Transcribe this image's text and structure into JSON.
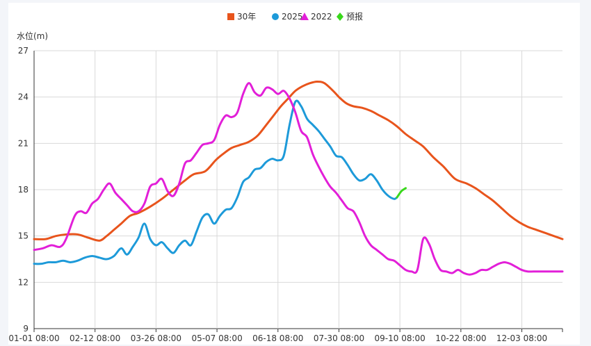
{
  "chart_data": {
    "type": "line",
    "title": "",
    "ylabel": "水位(m)",
    "xlabel": "",
    "ylim": [
      9,
      27
    ],
    "yticks": [
      9,
      12,
      15,
      18,
      21,
      24,
      27
    ],
    "xlim": [
      0,
      364
    ],
    "xticks": [
      {
        "day": 0,
        "label": "01-01 08:00"
      },
      {
        "day": 42,
        "label": "02-12 08:00"
      },
      {
        "day": 84,
        "label": "03-26 08:00"
      },
      {
        "day": 126,
        "label": "05-07 08:00"
      },
      {
        "day": 168,
        "label": "06-18 08:00"
      },
      {
        "day": 210,
        "label": "07-30 08:00"
      },
      {
        "day": 252,
        "label": "09-10 08:00"
      },
      {
        "day": 294,
        "label": "10-22 08:00"
      },
      {
        "day": 336,
        "label": "12-03 08:00"
      }
    ],
    "grid": true,
    "legend_position": "top-center",
    "series": [
      {
        "name": "30年",
        "color": "#e8541c",
        "marker": "square",
        "x": [
          0,
          8,
          15,
          22,
          30,
          37,
          45,
          50,
          55,
          60,
          66,
          72,
          80,
          88,
          96,
          104,
          110,
          118,
          125,
          130,
          136,
          142,
          148,
          154,
          160,
          165,
          170,
          175,
          180,
          185,
          190,
          195,
          200,
          206,
          210,
          215,
          220,
          226,
          232,
          238,
          244,
          250,
          256,
          262,
          268,
          275,
          282,
          290,
          298,
          304,
          310,
          316,
          322,
          328,
          334,
          340,
          346,
          352,
          358,
          364
        ],
        "values": [
          14.8,
          14.8,
          15.0,
          15.1,
          15.1,
          14.9,
          14.7,
          15.0,
          15.4,
          15.8,
          16.3,
          16.5,
          16.9,
          17.4,
          18.0,
          18.6,
          19.0,
          19.2,
          19.9,
          20.3,
          20.7,
          20.9,
          21.1,
          21.5,
          22.2,
          22.8,
          23.4,
          23.9,
          24.4,
          24.7,
          24.9,
          25.0,
          24.9,
          24.4,
          24.0,
          23.6,
          23.4,
          23.3,
          23.1,
          22.8,
          22.5,
          22.1,
          21.6,
          21.2,
          20.8,
          20.1,
          19.5,
          18.7,
          18.4,
          18.1,
          17.7,
          17.3,
          16.8,
          16.3,
          15.9,
          15.6,
          15.4,
          15.2,
          15.0,
          14.8
        ]
      },
      {
        "name": "2025",
        "color": "#1d9ad9",
        "marker": "circle",
        "x": [
          0,
          5,
          10,
          15,
          20,
          25,
          30,
          35,
          40,
          45,
          50,
          55,
          60,
          64,
          68,
          72,
          76,
          80,
          84,
          88,
          92,
          96,
          100,
          104,
          108,
          112,
          116,
          120,
          124,
          128,
          132,
          136,
          140,
          144,
          148,
          152,
          156,
          160,
          164,
          168,
          172,
          176,
          180,
          184,
          188,
          192,
          196,
          200,
          204,
          208,
          212,
          216,
          220,
          224,
          228,
          232,
          236,
          240,
          244,
          248,
          250
        ],
        "values": [
          13.2,
          13.2,
          13.3,
          13.3,
          13.4,
          13.3,
          13.4,
          13.6,
          13.7,
          13.6,
          13.5,
          13.7,
          14.2,
          13.8,
          14.3,
          14.9,
          15.8,
          14.8,
          14.4,
          14.6,
          14.2,
          13.9,
          14.4,
          14.7,
          14.4,
          15.3,
          16.2,
          16.4,
          15.8,
          16.3,
          16.7,
          16.8,
          17.5,
          18.5,
          18.8,
          19.3,
          19.4,
          19.8,
          20.0,
          19.9,
          20.2,
          22.2,
          23.7,
          23.4,
          22.6,
          22.2,
          21.8,
          21.3,
          20.8,
          20.2,
          20.1,
          19.6,
          19.0,
          18.6,
          18.7,
          19.0,
          18.6,
          18.0,
          17.6,
          17.4,
          17.5
        ]
      },
      {
        "name": "2022",
        "color": "#e21fd8",
        "marker": "triangle",
        "x": [
          0,
          6,
          12,
          18,
          22,
          28,
          32,
          36,
          40,
          44,
          48,
          52,
          56,
          60,
          64,
          68,
          72,
          76,
          80,
          84,
          88,
          92,
          96,
          100,
          104,
          108,
          112,
          116,
          120,
          124,
          128,
          132,
          136,
          140,
          144,
          148,
          152,
          156,
          160,
          164,
          168,
          172,
          176,
          180,
          184,
          188,
          192,
          196,
          200,
          204,
          208,
          212,
          216,
          220,
          224,
          228,
          232,
          236,
          240,
          244,
          248,
          252,
          256,
          260,
          264,
          268,
          272,
          276,
          280,
          284,
          288,
          292,
          296,
          300,
          304,
          308,
          312,
          316,
          320,
          324,
          328,
          332,
          336,
          340,
          344,
          348,
          352,
          356,
          360,
          364
        ],
        "values": [
          14.1,
          14.2,
          14.4,
          14.3,
          14.8,
          16.3,
          16.6,
          16.5,
          17.1,
          17.4,
          18.0,
          18.4,
          17.8,
          17.4,
          17.0,
          16.6,
          16.6,
          17.1,
          18.2,
          18.4,
          18.7,
          17.9,
          17.6,
          18.4,
          19.7,
          19.9,
          20.4,
          20.9,
          21.0,
          21.2,
          22.2,
          22.8,
          22.7,
          23.0,
          24.2,
          24.9,
          24.3,
          24.1,
          24.6,
          24.5,
          24.2,
          24.4,
          23.9,
          23.0,
          21.8,
          21.4,
          20.3,
          19.5,
          18.8,
          18.2,
          17.8,
          17.3,
          16.8,
          16.6,
          15.9,
          15.0,
          14.4,
          14.1,
          13.8,
          13.5,
          13.4,
          13.1,
          12.8,
          12.7,
          12.8,
          14.8,
          14.5,
          13.5,
          12.8,
          12.7,
          12.6,
          12.8,
          12.6,
          12.5,
          12.6,
          12.8,
          12.8,
          13.0,
          13.2,
          13.3,
          13.2,
          13.0,
          12.8,
          12.7,
          12.7,
          12.7,
          12.7,
          12.7,
          12.7,
          12.7
        ]
      },
      {
        "name": "预报",
        "color": "#39d81b",
        "marker": "diamond",
        "x": [
          250,
          253,
          256
        ],
        "values": [
          17.5,
          17.9,
          18.1
        ]
      }
    ]
  }
}
